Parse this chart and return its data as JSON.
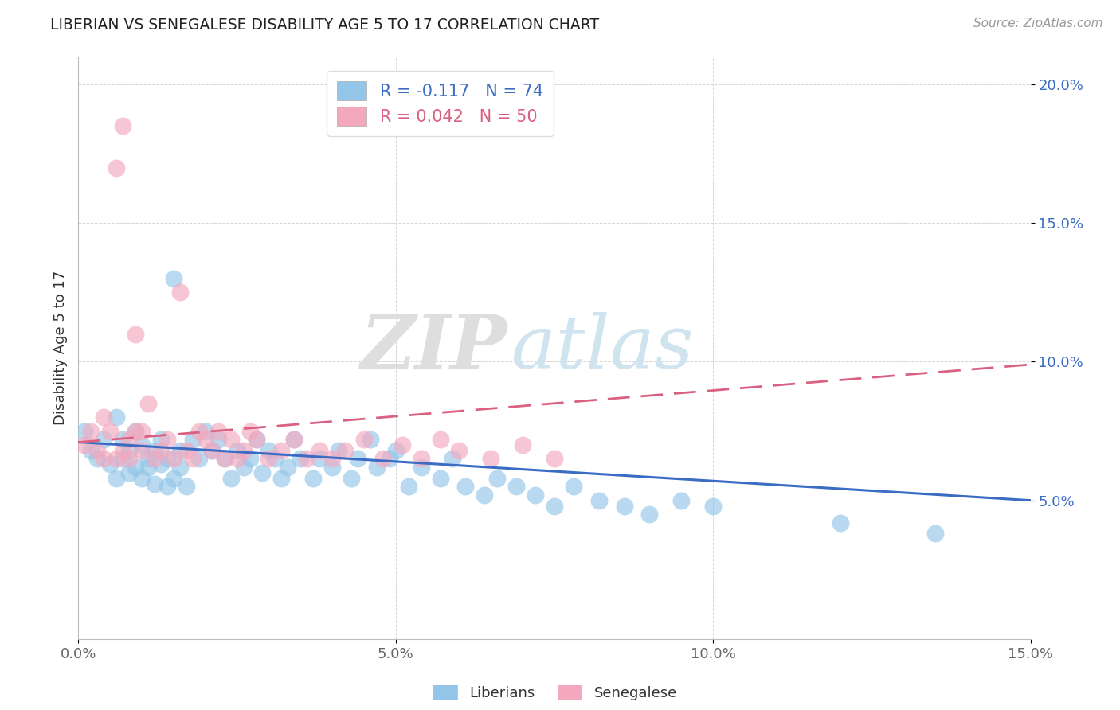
{
  "title": "LIBERIAN VS SENEGALESE DISABILITY AGE 5 TO 17 CORRELATION CHART",
  "source": "Source: ZipAtlas.com",
  "ylabel": "Disability Age 5 to 17",
  "xlim": [
    0.0,
    0.15
  ],
  "ylim": [
    0.0,
    0.21
  ],
  "xticks": [
    0.0,
    0.05,
    0.1,
    0.15
  ],
  "yticks": [
    0.05,
    0.1,
    0.15,
    0.2
  ],
  "xticklabels": [
    "0.0%",
    "5.0%",
    "10.0%",
    "15.0%"
  ],
  "yticklabels": [
    "5.0%",
    "10.0%",
    "15.0%",
    "20.0%"
  ],
  "liberian_color": "#92C5E8",
  "senegalese_color": "#F4A8BE",
  "liberian_line_color": "#3B6CC4",
  "senegalese_line_color": "#D96080",
  "R_liberian": -0.117,
  "N_liberian": 74,
  "R_senegalese": 0.042,
  "N_senegalese": 50,
  "watermark_zip": "ZIP",
  "watermark_atlas": "atlas",
  "legend_label_blue": "R = -0.117   N = 74",
  "legend_label_pink": "R = 0.042   N = 50",
  "liberian_x": [
    0.001,
    0.002,
    0.003,
    0.004,
    0.005,
    0.006,
    0.006,
    0.007,
    0.007,
    0.008,
    0.008,
    0.009,
    0.009,
    0.01,
    0.01,
    0.011,
    0.011,
    0.012,
    0.012,
    0.013,
    0.013,
    0.014,
    0.014,
    0.015,
    0.015,
    0.016,
    0.016,
    0.017,
    0.018,
    0.019,
    0.02,
    0.021,
    0.022,
    0.023,
    0.024,
    0.025,
    0.026,
    0.027,
    0.028,
    0.029,
    0.03,
    0.031,
    0.032,
    0.033,
    0.034,
    0.035,
    0.037,
    0.038,
    0.04,
    0.041,
    0.043,
    0.044,
    0.046,
    0.047,
    0.049,
    0.05,
    0.052,
    0.054,
    0.057,
    0.059,
    0.061,
    0.064,
    0.066,
    0.069,
    0.072,
    0.075,
    0.078,
    0.082,
    0.086,
    0.09,
    0.095,
    0.1,
    0.12,
    0.135
  ],
  "liberian_y": [
    0.075,
    0.068,
    0.065,
    0.072,
    0.063,
    0.08,
    0.058,
    0.072,
    0.065,
    0.068,
    0.06,
    0.075,
    0.062,
    0.07,
    0.058,
    0.065,
    0.062,
    0.068,
    0.056,
    0.063,
    0.072,
    0.055,
    0.065,
    0.058,
    0.13,
    0.062,
    0.068,
    0.055,
    0.072,
    0.065,
    0.075,
    0.068,
    0.072,
    0.065,
    0.058,
    0.068,
    0.062,
    0.065,
    0.072,
    0.06,
    0.068,
    0.065,
    0.058,
    0.062,
    0.072,
    0.065,
    0.058,
    0.065,
    0.062,
    0.068,
    0.058,
    0.065,
    0.072,
    0.062,
    0.065,
    0.068,
    0.055,
    0.062,
    0.058,
    0.065,
    0.055,
    0.052,
    0.058,
    0.055,
    0.052,
    0.048,
    0.055,
    0.05,
    0.048,
    0.045,
    0.05,
    0.048,
    0.042,
    0.038
  ],
  "senegalese_x": [
    0.001,
    0.002,
    0.003,
    0.004,
    0.004,
    0.005,
    0.006,
    0.006,
    0.007,
    0.007,
    0.008,
    0.008,
    0.009,
    0.009,
    0.01,
    0.01,
    0.011,
    0.012,
    0.013,
    0.014,
    0.015,
    0.016,
    0.017,
    0.018,
    0.019,
    0.02,
    0.021,
    0.022,
    0.023,
    0.024,
    0.025,
    0.026,
    0.027,
    0.028,
    0.03,
    0.032,
    0.034,
    0.036,
    0.038,
    0.04,
    0.042,
    0.045,
    0.048,
    0.051,
    0.054,
    0.057,
    0.06,
    0.065,
    0.07,
    0.075
  ],
  "senegalese_y": [
    0.07,
    0.075,
    0.068,
    0.08,
    0.065,
    0.075,
    0.17,
    0.065,
    0.185,
    0.068,
    0.072,
    0.065,
    0.075,
    0.11,
    0.068,
    0.075,
    0.085,
    0.065,
    0.068,
    0.072,
    0.065,
    0.125,
    0.068,
    0.065,
    0.075,
    0.072,
    0.068,
    0.075,
    0.065,
    0.072,
    0.065,
    0.068,
    0.075,
    0.072,
    0.065,
    0.068,
    0.072,
    0.065,
    0.068,
    0.065,
    0.068,
    0.072,
    0.065,
    0.07,
    0.065,
    0.072,
    0.068,
    0.065,
    0.07,
    0.065
  ]
}
